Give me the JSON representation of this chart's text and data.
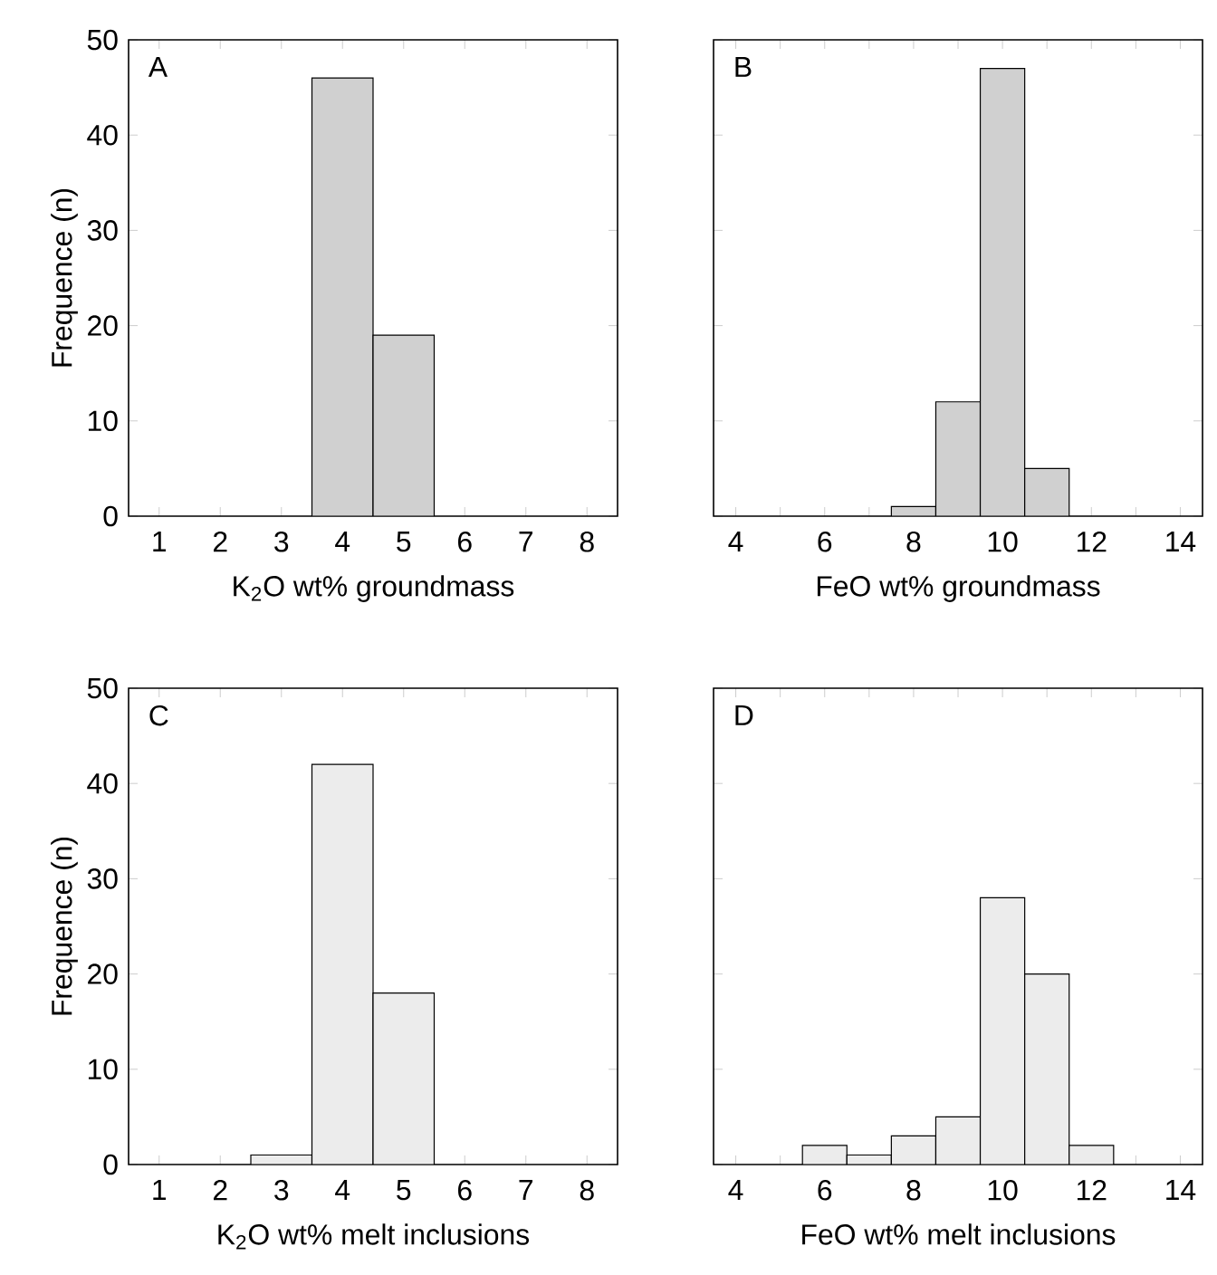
{
  "chart_data": [
    {
      "type": "histogram",
      "annotations": [
        "A"
      ],
      "xlabel": "K$_{2}$O wt% groundmass",
      "ylabel": "Frequence (n)",
      "bins": [
        3.5,
        4.5,
        5.5
      ],
      "values": [
        46,
        19
      ],
      "color": "#d0d0d0",
      "xlim": [
        0.5,
        8.5
      ],
      "ylim": [
        0,
        50
      ],
      "xticks": [
        1,
        2,
        3,
        4,
        5,
        6,
        7,
        8
      ],
      "yticks": [
        0,
        10,
        20,
        30,
        40,
        50
      ]
    },
    {
      "type": "histogram",
      "annotations": [
        "B"
      ],
      "xlabel": "FeO wt% groundmass",
      "bins": [
        7.5,
        8.5,
        9.5,
        10.5,
        11.5
      ],
      "values": [
        1,
        12,
        47,
        5
      ],
      "color": "#d0d0d0",
      "xlim": [
        3.5,
        14.5
      ],
      "ylim": [
        0,
        50
      ],
      "xticks": [
        4,
        {
          "value": 5,
          "label": null
        },
        6,
        {
          "value": 7,
          "label": null
        },
        8,
        {
          "value": 9,
          "label": null
        },
        10,
        {
          "value": 11,
          "label": null
        },
        12,
        {
          "value": 13,
          "label": null
        },
        14
      ],
      "yticks": [
        0,
        10,
        20,
        30,
        40,
        50
      ],
      "tick_labels": "x"
    },
    {
      "type": "histogram",
      "annotations": [
        "C"
      ],
      "xlabel": "K$_{2}$O wt% melt inclusions",
      "ylabel": "Frequence (n)",
      "bins": [
        2.5,
        3.5,
        4.5,
        5.5
      ],
      "values": [
        1,
        42,
        18
      ],
      "color": "#ececec",
      "xlim": [
        0.5,
        8.5
      ],
      "ylim": [
        0,
        50
      ],
      "xticks": [
        1,
        2,
        3,
        4,
        5,
        6,
        7,
        8
      ],
      "yticks": [
        0,
        10,
        20,
        30,
        40,
        50
      ]
    },
    {
      "type": "histogram",
      "annotations": [
        "D"
      ],
      "xlabel": "FeO wt% melt inclusions",
      "bins": [
        5.5,
        6.5,
        7.5,
        8.5,
        9.5,
        10.5,
        11.5,
        12.5
      ],
      "values": [
        2,
        1,
        3,
        5,
        28,
        20,
        2
      ],
      "color": "#ececec",
      "xlim": [
        3.5,
        14.5
      ],
      "ylim": [
        0,
        50
      ],
      "xticks": [
        4,
        {
          "value": 5,
          "label": null
        },
        6,
        {
          "value": 7,
          "label": null
        },
        8,
        {
          "value": 9,
          "label": null
        },
        10,
        {
          "value": 11,
          "label": null
        },
        12,
        {
          "value": 13,
          "label": null
        },
        14
      ],
      "yticks": [
        0,
        10,
        20,
        30,
        40,
        50
      ],
      "tick_labels": "x"
    }
  ]
}
